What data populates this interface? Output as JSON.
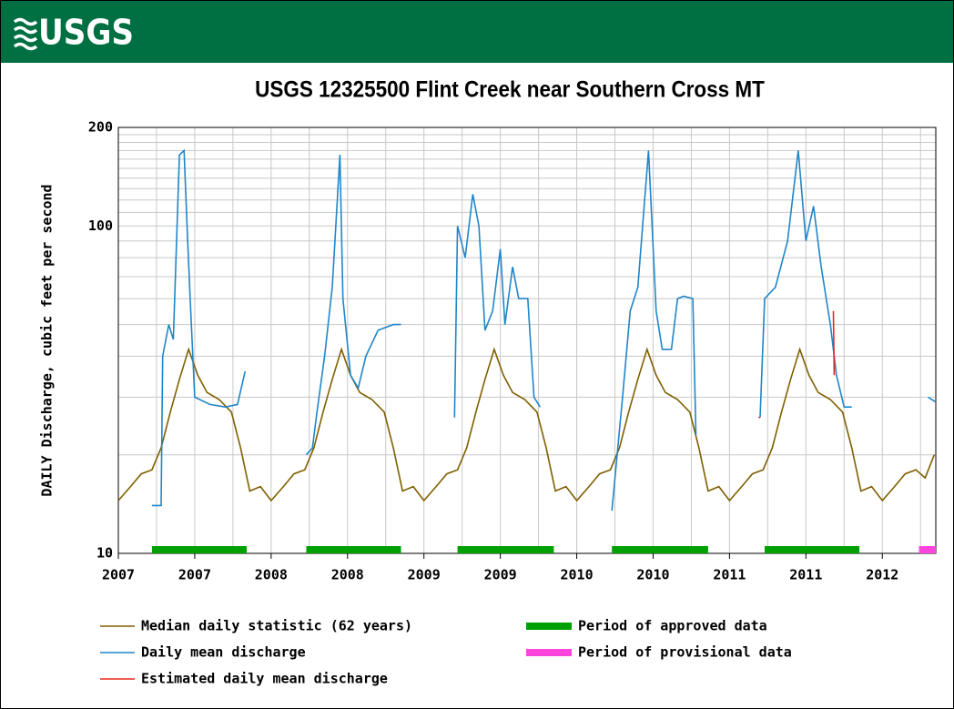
{
  "header": {
    "logo": "USGS"
  },
  "chart_data": {
    "type": "line",
    "title": "USGS 12325500 Flint Creek near Southern Cross MT",
    "ylabel": "DAILY Discharge, cubic feet per second",
    "ylog": true,
    "ylim": [
      10,
      200
    ],
    "yticks": [
      10,
      100,
      200
    ],
    "ygrid": [
      20,
      30,
      40,
      50,
      60,
      70,
      80,
      90,
      110,
      120,
      130,
      140,
      150,
      160,
      170,
      180,
      190
    ],
    "xlim": [
      2007,
      2012.35
    ],
    "xticks": [
      2007,
      {
        "value": 2007.5,
        "label": "2007"
      },
      2008,
      {
        "value": 2008.5,
        "label": "2008"
      },
      2009,
      {
        "value": 2009.5,
        "label": "2009"
      },
      2010,
      {
        "value": 2010.5,
        "label": "2010"
      },
      2011,
      {
        "value": 2011.5,
        "label": "2011"
      },
      2012
    ],
    "xgrid": [
      2007.25,
      2007.75,
      2008.25,
      2008.75,
      2009.25,
      2009.75,
      2010.25,
      2010.75,
      2011.25,
      2011.75,
      2012.25
    ],
    "grid": true,
    "series": [
      {
        "name": "Median daily statistic (62 years)",
        "color": "#7f5f00",
        "x": [
          2007.0,
          2007.08,
          2007.15,
          2007.22,
          2007.28,
          2007.34,
          2007.4,
          2007.46,
          2007.52,
          2007.58,
          2007.66,
          2007.74,
          2007.8,
          2007.86,
          2007.93,
          2008.0,
          2008.08,
          2008.15,
          2008.22,
          2008.28,
          2008.34,
          2008.4,
          2008.46,
          2008.52,
          2008.58,
          2008.66,
          2008.74,
          2008.8,
          2008.86,
          2008.93,
          2009.0,
          2009.08,
          2009.15,
          2009.22,
          2009.28,
          2009.34,
          2009.4,
          2009.46,
          2009.52,
          2009.58,
          2009.66,
          2009.74,
          2009.8,
          2009.86,
          2009.93,
          2010.0,
          2010.08,
          2010.15,
          2010.22,
          2010.28,
          2010.34,
          2010.4,
          2010.46,
          2010.52,
          2010.58,
          2010.66,
          2010.74,
          2010.8,
          2010.86,
          2010.93,
          2011.0,
          2011.08,
          2011.15,
          2011.22,
          2011.28,
          2011.34,
          2011.4,
          2011.46,
          2011.52,
          2011.58,
          2011.66,
          2011.74,
          2011.8,
          2011.86,
          2011.93,
          2012.0,
          2012.08,
          2012.15,
          2012.22,
          2012.28,
          2012.34
        ],
        "values": [
          14.5,
          16,
          17.5,
          18,
          21,
          27,
          34,
          42,
          35,
          31,
          29.5,
          27,
          21,
          15.5,
          16,
          14.5,
          16,
          17.5,
          18,
          21,
          27,
          34,
          42,
          35,
          31,
          29.5,
          27,
          21,
          15.5,
          16,
          14.5,
          16,
          17.5,
          18,
          21,
          27,
          34,
          42,
          35,
          31,
          29.5,
          27,
          21,
          15.5,
          16,
          14.5,
          16,
          17.5,
          18,
          21,
          27,
          34,
          42,
          35,
          31,
          29.5,
          27,
          21,
          15.5,
          16,
          14.5,
          16,
          17.5,
          18,
          21,
          27,
          34,
          42,
          35,
          31,
          29.5,
          27,
          21,
          15.5,
          16,
          14.5,
          16,
          17.5,
          18,
          17,
          20
        ]
      },
      {
        "name": "Daily mean discharge",
        "color": "#1f86c8",
        "x": [
          2007.22,
          2007.28,
          2007.29,
          2007.33,
          2007.36,
          2007.4,
          2007.43,
          2007.45,
          2007.47,
          2007.5,
          2007.6,
          2007.7,
          2007.78,
          2007.83,
          2008.0,
          2008.23,
          2008.27,
          2008.3,
          2008.35,
          2008.4,
          2008.45,
          2008.47,
          2008.52,
          2008.57,
          2008.62,
          2008.7,
          2008.8,
          2008.85,
          2009.0,
          2009.2,
          2009.22,
          2009.27,
          2009.32,
          2009.36,
          2009.4,
          2009.45,
          2009.5,
          2009.53,
          2009.58,
          2009.62,
          2009.68,
          2009.72,
          2009.76,
          2010.0,
          2010.23,
          2010.3,
          2010.35,
          2010.4,
          2010.47,
          2010.52,
          2010.56,
          2010.62,
          2010.66,
          2010.7,
          2010.76,
          2010.78,
          2011.0,
          2011.2,
          2011.23,
          2011.3,
          2011.38,
          2011.45,
          2011.5,
          2011.55,
          2011.6,
          2011.66,
          2011.7,
          2011.75,
          2011.8,
          2012.0,
          2012.3,
          2012.35
        ],
        "values": [
          14,
          14,
          40,
          50,
          45,
          165,
          170,
          100,
          60,
          30,
          28.5,
          28,
          28.5,
          36,
          null,
          20,
          21,
          27,
          40,
          65,
          165,
          60,
          35,
          32,
          40,
          48,
          50,
          50,
          null,
          26,
          100,
          80,
          125,
          100,
          48,
          55,
          85,
          50,
          75,
          60,
          60,
          30,
          28,
          null,
          13.5,
          30,
          55,
          65,
          170,
          55,
          42,
          42,
          60,
          61,
          60,
          23,
          null,
          26,
          60,
          65,
          90,
          170,
          90,
          115,
          75,
          50,
          35,
          28,
          28,
          null,
          30,
          29
        ]
      },
      {
        "name": "Estimated daily mean discharge",
        "color": "#e8281e",
        "x": [
          2011.19,
          2011.2,
          2011.3,
          2011.68,
          2011.685
        ],
        "values": [
          26,
          26,
          null,
          55,
          35
        ]
      }
    ],
    "bands": [
      {
        "name": "Period of approved data",
        "color": "#00a000",
        "ranges": [
          [
            2007.22,
            2007.84
          ],
          [
            2008.23,
            2008.85
          ],
          [
            2009.22,
            2009.85
          ],
          [
            2010.23,
            2010.86
          ],
          [
            2011.23,
            2011.85
          ]
        ]
      },
      {
        "name": "Period of provisional data",
        "color": "#ff44dd",
        "ranges": [
          [
            2012.24,
            2012.35
          ]
        ]
      }
    ]
  }
}
